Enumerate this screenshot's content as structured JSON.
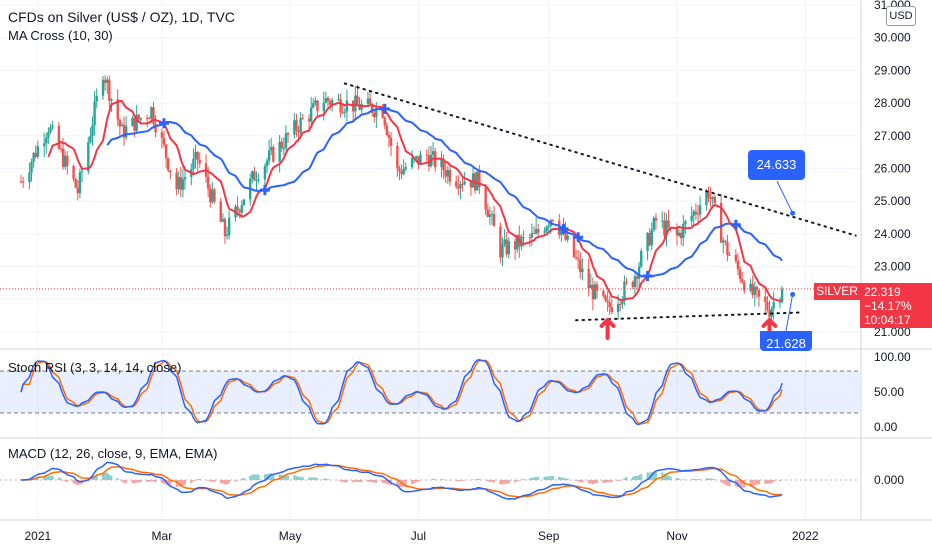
{
  "legend": {
    "title": "CFDs on Silver (US$ / OZ), 1D, TVC",
    "ma_cross": "MA Cross (10, 30)",
    "stoch_rsi": "Stoch RSI (3, 3, 14, 14, close)",
    "macd": "MACD (12, 26, close, 9, EMA, EMA)"
  },
  "currency": "USD",
  "price_tag": {
    "symbol": "SILVER",
    "price": "22.319",
    "change": "−14.17%",
    "countdown": "10:04:17"
  },
  "callouts": {
    "resistance": "24.633",
    "support": "21.628"
  },
  "colors": {
    "up": "#26a69a",
    "down": "#ef5350",
    "fast_ma": "#f23645",
    "slow_ma": "#2962ff",
    "stoch_k": "#2962ff",
    "stoch_d": "#ff6d00",
    "macd_line": "#2962ff",
    "signal_line": "#ff6d00",
    "arrow": "#f23645"
  },
  "chart_data": {
    "type": "candlestick",
    "title": "CFDs on Silver (US$ / OZ), 1D, TVC",
    "price_axis": {
      "ticks": [
        "31.000",
        "30.000",
        "29.000",
        "28.000",
        "27.000",
        "26.000",
        "25.000",
        "24.000",
        "23.000",
        "22.000",
        "21.000"
      ],
      "range": [
        20.6,
        31.0
      ]
    },
    "time_axis": {
      "ticks": [
        "2021",
        "Mar",
        "May",
        "Jul",
        "Sep",
        "Nov",
        "2022"
      ]
    },
    "price_path_months": [
      "2020-12",
      "2021-01",
      "2021-02",
      "2021-02b",
      "2021-03",
      "2021-04",
      "2021-05",
      "2021-06",
      "2021-07",
      "2021-08",
      "2021-09",
      "2021-10",
      "2021-11",
      "2021-12"
    ],
    "close_anchors": [
      {
        "t": "2020-12-24",
        "y": 25.6
      },
      {
        "t": "2021-01-06",
        "y": 27.3
      },
      {
        "t": "2021-01-20",
        "y": 25.3
      },
      {
        "t": "2021-02-01",
        "y": 29.0
      },
      {
        "t": "2021-02-10",
        "y": 27.1
      },
      {
        "t": "2021-02-24",
        "y": 27.8
      },
      {
        "t": "2021-03-08",
        "y": 25.4
      },
      {
        "t": "2021-03-18",
        "y": 26.3
      },
      {
        "t": "2021-03-31",
        "y": 24.0
      },
      {
        "t": "2021-04-14",
        "y": 25.8
      },
      {
        "t": "2021-05-03",
        "y": 27.2
      },
      {
        "t": "2021-05-17",
        "y": 28.1
      },
      {
        "t": "2021-06-04",
        "y": 27.9
      },
      {
        "t": "2021-06-14",
        "y": 27.8
      },
      {
        "t": "2021-06-21",
        "y": 25.9
      },
      {
        "t": "2021-07-05",
        "y": 26.4
      },
      {
        "t": "2021-07-19",
        "y": 25.7
      },
      {
        "t": "2021-07-30",
        "y": 25.6
      },
      {
        "t": "2021-08-09",
        "y": 23.5
      },
      {
        "t": "2021-08-25",
        "y": 23.9
      },
      {
        "t": "2021-09-03",
        "y": 24.6
      },
      {
        "t": "2021-09-20",
        "y": 22.4
      },
      {
        "t": "2021-09-29",
        "y": 21.7
      },
      {
        "t": "2021-10-11",
        "y": 22.6
      },
      {
        "t": "2021-10-22",
        "y": 24.4
      },
      {
        "t": "2021-11-01",
        "y": 23.9
      },
      {
        "t": "2021-11-16",
        "y": 25.3
      },
      {
        "t": "2021-11-24",
        "y": 23.6
      },
      {
        "t": "2021-12-06",
        "y": 22.2
      },
      {
        "t": "2021-12-15",
        "y": 21.7
      },
      {
        "t": "2021-12-21",
        "y": 22.32
      }
    ],
    "ma_fast_period": 10,
    "ma_slow_period": 30,
    "annotations": {
      "resistance_line": {
        "from": {
          "t": "2021-05-27",
          "y": 28.6
        },
        "to": {
          "t": "2022-01-25",
          "y": 23.95
        }
      },
      "support_line": {
        "from": {
          "t": "2021-09-14",
          "y": 21.36
        },
        "to": {
          "t": "2021-12-31",
          "y": 21.6
        }
      },
      "resistance_value": "24.633",
      "support_value": "21.628",
      "arrows": [
        "2021-09-29",
        "2021-12-15"
      ]
    },
    "stoch_rsi": {
      "ticks": [
        "100.00",
        "50.00",
        "0.00"
      ],
      "bands": [
        80,
        20
      ]
    },
    "macd": {
      "ticks": [
        "0.000"
      ]
    }
  }
}
